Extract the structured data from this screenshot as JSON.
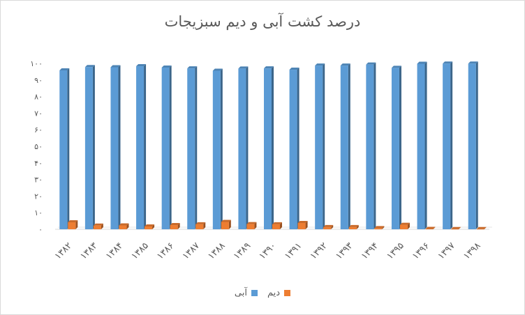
{
  "chart_data": {
    "type": "bar",
    "title": "درصد کشت آبی و دیم سبزیجات",
    "xlabel": "",
    "ylabel": "",
    "ylim": [
      0,
      100
    ],
    "y_ticks": [
      "۰",
      "۱۰",
      "۲۰",
      "۳۰",
      "۴۰",
      "۵۰",
      "۶۰",
      "۷۰",
      "۸۰",
      "۹۰",
      "۱۰۰"
    ],
    "grid": false,
    "legend_position": "bottom",
    "categories": [
      "۱۳۸۲",
      "۱۳۸۳",
      "۱۳۸۴",
      "۱۳۸۵",
      "۱۳۸۶",
      "۱۳۸۷",
      "۱۳۸۸",
      "۱۳۸۹",
      "۱۳۹۰",
      "۱۳۹۱",
      "۱۳۹۲",
      "۱۳۹۳",
      "۱۳۹۴",
      "۱۳۹۵",
      "۱۳۹۶",
      "۱۳۹۷",
      "۱۳۹۸"
    ],
    "series": [
      {
        "name": "آبی",
        "color": "#5b9bd5",
        "values": [
          95.8,
          97.8,
          97.7,
          98.3,
          97.5,
          97.0,
          95.6,
          96.9,
          97.0,
          96.2,
          98.7,
          98.7,
          99.3,
          97.3,
          99.8,
          99.9,
          99.9
        ]
      },
      {
        "name": "دیم",
        "color": "#ed7d31",
        "values": [
          4.2,
          2.2,
          2.3,
          1.7,
          2.5,
          3.0,
          4.4,
          3.1,
          3.0,
          3.8,
          1.3,
          1.3,
          0.7,
          2.7,
          0.2,
          0.1,
          0.1
        ]
      }
    ]
  }
}
